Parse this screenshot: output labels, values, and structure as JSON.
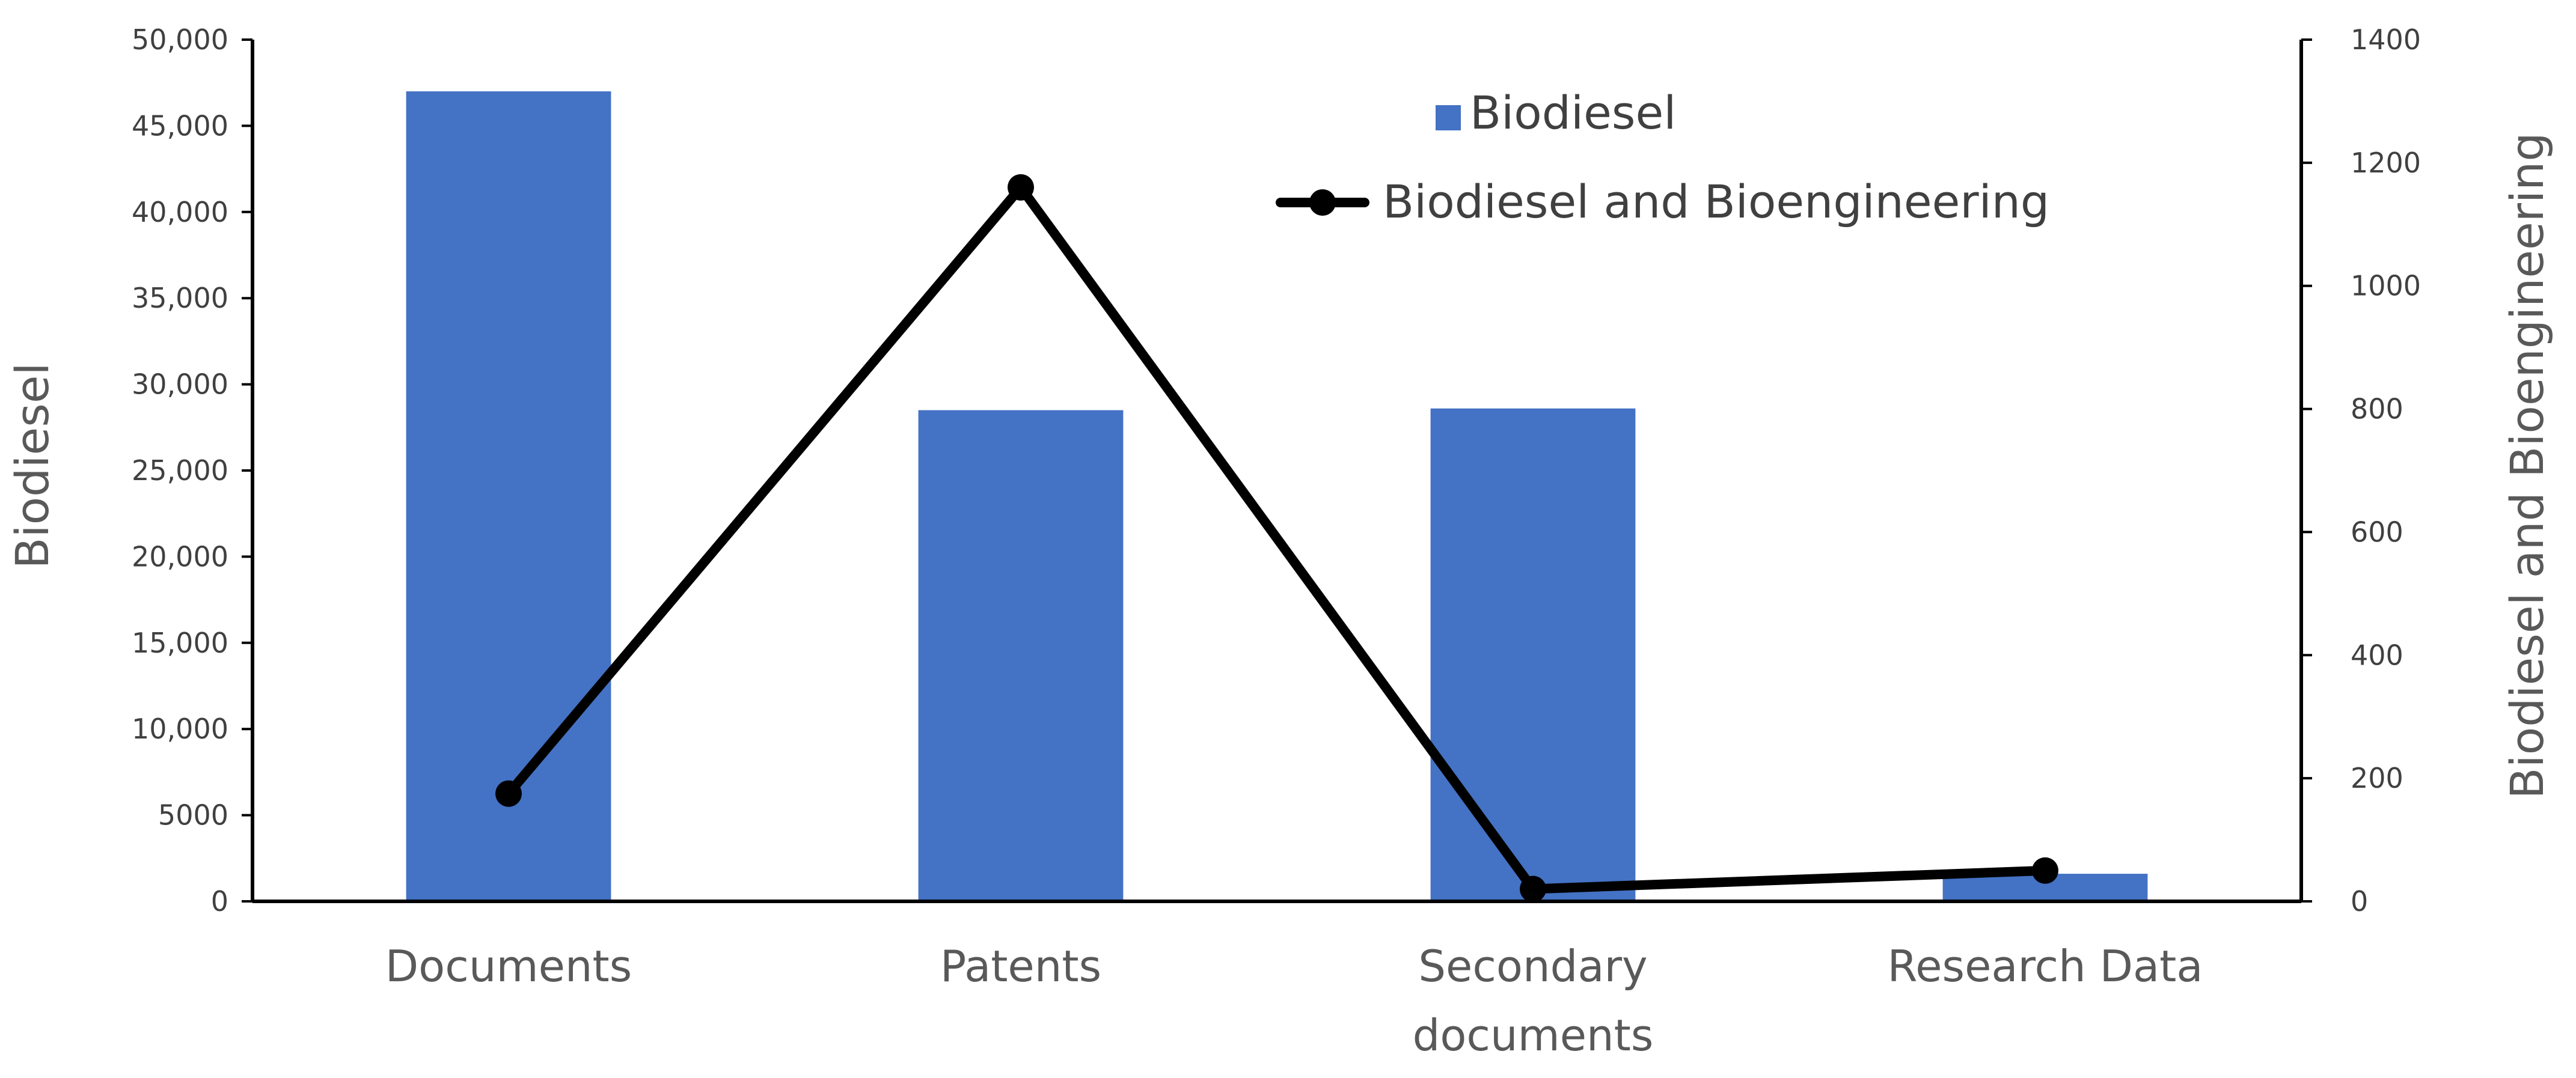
{
  "chart_data": {
    "type": "bar",
    "title": "",
    "categories": [
      "Documents",
      "Patents",
      "Secondary documents",
      "Research Data"
    ],
    "category_lines": [
      [
        "Documents"
      ],
      [
        "Patents"
      ],
      [
        "Secondary",
        "documents"
      ],
      [
        "Research Data"
      ]
    ],
    "series": [
      {
        "name": "Biodiesel",
        "type": "bar",
        "axis": "left",
        "color": "#4472C4",
        "values": [
          47000,
          28500,
          28600,
          1600
        ]
      },
      {
        "name": "Biodiesel and Bioengineering",
        "type": "line",
        "axis": "right",
        "color": "#000000",
        "values": [
          175,
          1160,
          20,
          50
        ]
      }
    ],
    "y_left": {
      "label": "Biodiesel",
      "range": [
        0,
        50000
      ],
      "ticks": [
        0,
        5000,
        10000,
        15000,
        20000,
        25000,
        30000,
        35000,
        40000,
        45000,
        50000
      ],
      "tick_labels": [
        "0",
        "5000",
        "10,000",
        "15,000",
        "20,000",
        "25,000",
        "30,000",
        "35,000",
        "40,000",
        "45,000",
        "50,000"
      ]
    },
    "y_right": {
      "label": "Biodiesel and Bioengineering",
      "range": [
        0,
        1400
      ],
      "ticks": [
        0,
        200,
        400,
        600,
        800,
        1000,
        1200,
        1400
      ],
      "tick_labels": [
        "0",
        "200",
        "400",
        "600",
        "800",
        "1000",
        "1200",
        "1400"
      ]
    },
    "legend": {
      "position": "top-right-inside",
      "entries": [
        "Biodiesel",
        "Biodiesel and Bioengineering"
      ]
    },
    "grid": false
  }
}
